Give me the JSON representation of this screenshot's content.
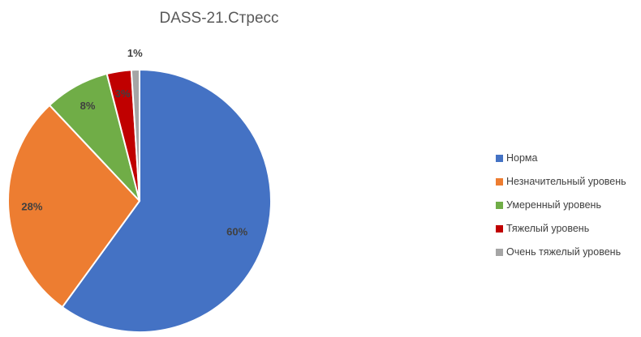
{
  "chart_data": {
    "type": "pie",
    "title": "DASS-21.Стресс",
    "categories": [
      "Норма",
      "Незначительный уровень",
      "Умеренный уровень",
      "Тяжелый уровень",
      "Очень тяжелый уровень"
    ],
    "values": [
      60,
      28,
      8,
      3,
      1
    ],
    "data_labels": [
      "60%",
      "28%",
      "8%",
      "3%",
      "1%"
    ],
    "colors": [
      "#4472C4",
      "#ED7D31",
      "#70AD47",
      "#C00000",
      "#A5A5A5"
    ],
    "legend_position": "right",
    "start_angle_deg": 0,
    "direction": "clockwise"
  }
}
